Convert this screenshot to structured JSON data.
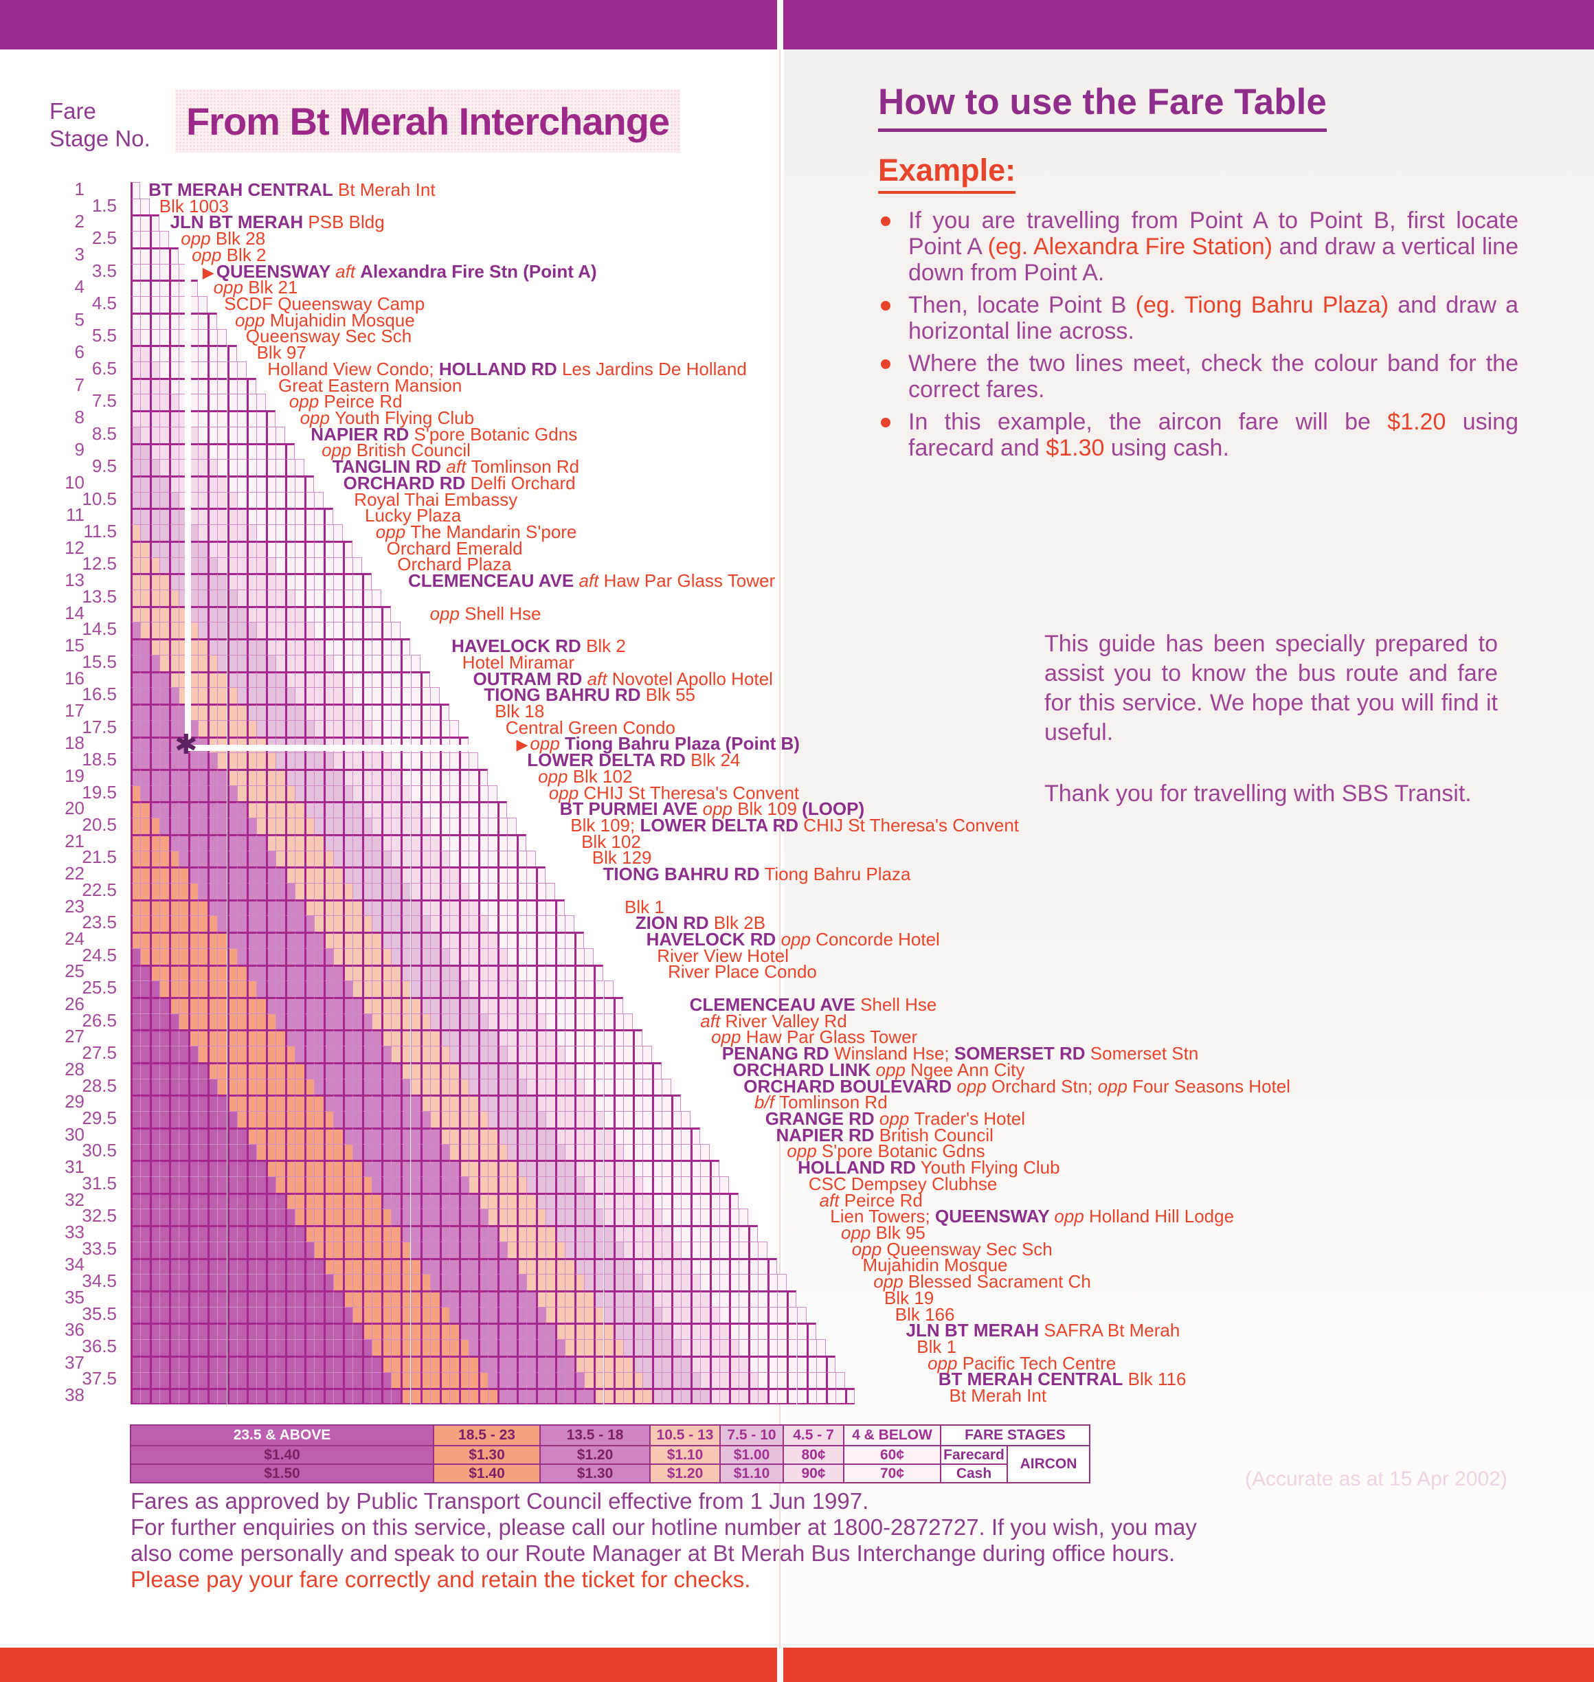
{
  "header": {
    "fare_stage_line1": "Fare",
    "fare_stage_line2": "Stage No.",
    "title": "From Bt Merah Interchange"
  },
  "howto": {
    "title": "How to use the Fare Table",
    "example_label": "Example:",
    "bullets": [
      {
        "parts": [
          {
            "t": "If you are travelling from Point A to Point B, first locate Point A "
          },
          {
            "t": "(eg. Alexandra Fire Station)",
            "red": true
          },
          {
            "t": " and draw a vertical line down from Point A."
          }
        ]
      },
      {
        "parts": [
          {
            "t": "Then, locate Point B "
          },
          {
            "t": "(eg. Tiong Bahru Plaza)",
            "red": true
          },
          {
            "t": " and draw a horizontal line across."
          }
        ]
      },
      {
        "parts": [
          {
            "t": "Where the two lines meet, check the colour band for the correct fares."
          }
        ]
      },
      {
        "parts": [
          {
            "t": "In this example, the aircon fare will be "
          },
          {
            "t": "$1.20",
            "red": true
          },
          {
            "t": " using farecard and "
          },
          {
            "t": "$1.30",
            "red": true
          },
          {
            "t": " using cash."
          }
        ]
      }
    ]
  },
  "guide": {
    "para": "This guide has been specially prepared to assist you to know the bus route and fare for this service. We hope that you will find it useful.",
    "thanks": "Thank you for travelling with SBS Transit."
  },
  "example_overlay": {
    "marker_glyph": "✱"
  },
  "fare_table": {
    "bands": [
      {
        "range": "23.5 & ABOVE",
        "farecard": "$1.40",
        "cash": "$1.50",
        "color": "#bd5fae",
        "legend_text": "white"
      },
      {
        "range": "18.5 - 23",
        "farecard": "$1.30",
        "cash": "$1.40",
        "color": "#f5a283",
        "legend_text": "dark"
      },
      {
        "range": "13.5 - 18",
        "farecard": "$1.20",
        "cash": "$1.30",
        "color": "#cf85c4",
        "legend_text": "dark"
      },
      {
        "range": "10.5 - 13",
        "farecard": "$1.10",
        "cash": "$1.20",
        "color": "#f8c8b4",
        "legend_text": "light"
      },
      {
        "range": "7.5 - 10",
        "farecard": "$1.00",
        "cash": "$1.10",
        "color": "#e5c0dc",
        "legend_text": "light"
      },
      {
        "range": "4.5 - 7",
        "farecard": "80¢",
        "cash": "90¢",
        "color": "#f4dcea",
        "legend_text": "light"
      },
      {
        "range": "4 & BELOW",
        "farecard": "60¢",
        "cash": "70¢",
        "color": "#fcf3f8",
        "legend_text": "light"
      }
    ],
    "legend_headers": {
      "fare_stages": "FARE STAGES",
      "farecard": "Farecard",
      "cash": "Cash",
      "aircon": "AIRCON"
    },
    "stages": [
      {
        "stage": "1",
        "parts": [
          {
            "t": "BT MERAH CENTRAL",
            "s": "road"
          },
          {
            "t": " Bt Merah Int",
            "s": "red"
          }
        ]
      },
      {
        "stage": "1.5",
        "parts": [
          {
            "t": "Blk 1003",
            "s": "red"
          }
        ]
      },
      {
        "stage": "2",
        "parts": [
          {
            "t": "JLN BT MERAH",
            "s": "road"
          },
          {
            "t": " PSB Bldg",
            "s": "red"
          }
        ]
      },
      {
        "stage": "2.5",
        "parts": [
          {
            "t": "opp ",
            "s": "it"
          },
          {
            "t": "Blk 28",
            "s": "red"
          }
        ]
      },
      {
        "stage": "3",
        "parts": [
          {
            "t": "opp ",
            "s": "it"
          },
          {
            "t": "Blk 2",
            "s": "red"
          }
        ]
      },
      {
        "stage": "3.5",
        "parts": [
          {
            "t": "▶",
            "s": "mark"
          },
          {
            "t": "QUEENSWAY ",
            "s": "road"
          },
          {
            "t": "aft ",
            "s": "it"
          },
          {
            "t": "Alexandra Fire Stn (Point A)",
            "s": "road"
          }
        ]
      },
      {
        "stage": "4",
        "parts": [
          {
            "t": "opp ",
            "s": "it"
          },
          {
            "t": "Blk 21",
            "s": "red"
          }
        ]
      },
      {
        "stage": "4.5",
        "parts": [
          {
            "t": "SCDF Queensway Camp",
            "s": "red"
          }
        ]
      },
      {
        "stage": "5",
        "parts": [
          {
            "t": "opp ",
            "s": "it"
          },
          {
            "t": "Mujahidin Mosque",
            "s": "red"
          }
        ]
      },
      {
        "stage": "5.5",
        "parts": [
          {
            "t": "Queensway Sec Sch",
            "s": "red"
          }
        ]
      },
      {
        "stage": "6",
        "parts": [
          {
            "t": "Blk 97",
            "s": "red"
          }
        ]
      },
      {
        "stage": "6.5",
        "parts": [
          {
            "t": "Holland View Condo;  ",
            "s": "red"
          },
          {
            "t": "HOLLAND RD",
            "s": "road"
          },
          {
            "t": " Les Jardins De Holland",
            "s": "red"
          }
        ]
      },
      {
        "stage": "7",
        "parts": [
          {
            "t": "Great Eastern Mansion",
            "s": "red"
          }
        ]
      },
      {
        "stage": "7.5",
        "parts": [
          {
            "t": "opp ",
            "s": "it"
          },
          {
            "t": "Peirce Rd",
            "s": "red"
          }
        ]
      },
      {
        "stage": "8",
        "parts": [
          {
            "t": "opp ",
            "s": "it"
          },
          {
            "t": "Youth Flying Club",
            "s": "red"
          }
        ]
      },
      {
        "stage": "8.5",
        "parts": [
          {
            "t": "NAPIER RD",
            "s": "road"
          },
          {
            "t": " S'pore Botanic Gdns",
            "s": "red"
          }
        ]
      },
      {
        "stage": "9",
        "parts": [
          {
            "t": "opp ",
            "s": "it"
          },
          {
            "t": "British Council",
            "s": "red"
          }
        ]
      },
      {
        "stage": "9.5",
        "parts": [
          {
            "t": "TANGLIN RD ",
            "s": "road"
          },
          {
            "t": "aft ",
            "s": "it"
          },
          {
            "t": "Tomlinson Rd",
            "s": "red"
          }
        ]
      },
      {
        "stage": "10",
        "parts": [
          {
            "t": "ORCHARD RD",
            "s": "road"
          },
          {
            "t": " Delfi Orchard",
            "s": "red"
          }
        ]
      },
      {
        "stage": "10.5",
        "parts": [
          {
            "t": "Royal Thai Embassy",
            "s": "red"
          }
        ]
      },
      {
        "stage": "11",
        "parts": [
          {
            "t": "Lucky Plaza",
            "s": "red"
          }
        ]
      },
      {
        "stage": "11.5",
        "parts": [
          {
            "t": "opp ",
            "s": "it"
          },
          {
            "t": "The Mandarin S'pore",
            "s": "red"
          }
        ]
      },
      {
        "stage": "12",
        "parts": [
          {
            "t": "Orchard Emerald",
            "s": "red"
          }
        ]
      },
      {
        "stage": "12.5",
        "parts": [
          {
            "t": "Orchard Plaza",
            "s": "red"
          }
        ]
      },
      {
        "stage": "13",
        "parts": [
          {
            "t": "CLEMENCEAU AVE ",
            "s": "road"
          },
          {
            "t": "aft ",
            "s": "it"
          },
          {
            "t": "Haw Par Glass Tower",
            "s": "red"
          }
        ]
      },
      {
        "stage": "13.5",
        "parts": []
      },
      {
        "stage": "14",
        "parts": [
          {
            "t": "opp ",
            "s": "it"
          },
          {
            "t": "Shell Hse",
            "s": "red"
          }
        ]
      },
      {
        "stage": "14.5",
        "parts": []
      },
      {
        "stage": "15",
        "parts": [
          {
            "t": "HAVELOCK RD",
            "s": "road"
          },
          {
            "t": " Blk 2",
            "s": "red"
          }
        ]
      },
      {
        "stage": "15.5",
        "parts": [
          {
            "t": "Hotel Miramar",
            "s": "red"
          }
        ]
      },
      {
        "stage": "16",
        "parts": [
          {
            "t": "OUTRAM RD ",
            "s": "road"
          },
          {
            "t": "aft ",
            "s": "it"
          },
          {
            "t": "Novotel Apollo Hotel",
            "s": "red"
          }
        ]
      },
      {
        "stage": "16.5",
        "parts": [
          {
            "t": "TIONG BAHRU RD",
            "s": "road"
          },
          {
            "t": " Blk 55",
            "s": "red"
          }
        ]
      },
      {
        "stage": "17",
        "parts": [
          {
            "t": "Blk 18",
            "s": "red"
          }
        ]
      },
      {
        "stage": "17.5",
        "parts": [
          {
            "t": "Central Green Condo",
            "s": "red"
          }
        ]
      },
      {
        "stage": "18",
        "parts": [
          {
            "t": "▶",
            "s": "mark"
          },
          {
            "t": "opp ",
            "s": "it"
          },
          {
            "t": "Tiong Bahru Plaza (Point B)",
            "s": "road"
          }
        ]
      },
      {
        "stage": "18.5",
        "parts": [
          {
            "t": "LOWER DELTA RD",
            "s": "road"
          },
          {
            "t": " Blk 24",
            "s": "red"
          }
        ]
      },
      {
        "stage": "19",
        "parts": [
          {
            "t": "opp ",
            "s": "it"
          },
          {
            "t": "Blk 102",
            "s": "red"
          }
        ]
      },
      {
        "stage": "19.5",
        "parts": [
          {
            "t": "opp ",
            "s": "it"
          },
          {
            "t": "CHIJ St Theresa's Convent",
            "s": "red"
          }
        ]
      },
      {
        "stage": "20",
        "parts": [
          {
            "t": "BT PURMEI AVE ",
            "s": "road"
          },
          {
            "t": "opp ",
            "s": "it"
          },
          {
            "t": "Blk 109  ",
            "s": "red"
          },
          {
            "t": "(LOOP)",
            "s": "road"
          }
        ]
      },
      {
        "stage": "20.5",
        "parts": [
          {
            "t": "Blk 109;  ",
            "s": "red"
          },
          {
            "t": "LOWER DELTA RD",
            "s": "road"
          },
          {
            "t": " CHIJ St Theresa's Convent",
            "s": "red"
          }
        ]
      },
      {
        "stage": "21",
        "parts": [
          {
            "t": "Blk 102",
            "s": "red"
          }
        ]
      },
      {
        "stage": "21.5",
        "parts": [
          {
            "t": "Blk 129",
            "s": "red"
          }
        ]
      },
      {
        "stage": "22",
        "parts": [
          {
            "t": "TIONG BAHRU RD",
            "s": "road"
          },
          {
            "t": " Tiong Bahru Plaza",
            "s": "red"
          }
        ]
      },
      {
        "stage": "22.5",
        "parts": []
      },
      {
        "stage": "23",
        "parts": [
          {
            "t": "Blk 1",
            "s": "red"
          }
        ]
      },
      {
        "stage": "23.5",
        "parts": [
          {
            "t": "ZION RD",
            "s": "road"
          },
          {
            "t": " Blk 2B",
            "s": "red"
          }
        ]
      },
      {
        "stage": "24",
        "parts": [
          {
            "t": "HAVELOCK RD ",
            "s": "road"
          },
          {
            "t": "opp ",
            "s": "it"
          },
          {
            "t": "Concorde Hotel",
            "s": "red"
          }
        ]
      },
      {
        "stage": "24.5",
        "parts": [
          {
            "t": "River View Hotel",
            "s": "red"
          }
        ]
      },
      {
        "stage": "25",
        "parts": [
          {
            "t": "River Place Condo",
            "s": "red"
          }
        ]
      },
      {
        "stage": "25.5",
        "parts": []
      },
      {
        "stage": "26",
        "parts": [
          {
            "t": "CLEMENCEAU AVE",
            "s": "road"
          },
          {
            "t": " Shell Hse",
            "s": "red"
          }
        ]
      },
      {
        "stage": "26.5",
        "parts": [
          {
            "t": "aft ",
            "s": "it"
          },
          {
            "t": "River Valley Rd",
            "s": "red"
          }
        ]
      },
      {
        "stage": "27",
        "parts": [
          {
            "t": "opp ",
            "s": "it"
          },
          {
            "t": "Haw Par Glass Tower",
            "s": "red"
          }
        ]
      },
      {
        "stage": "27.5",
        "parts": [
          {
            "t": "PENANG RD",
            "s": "road"
          },
          {
            "t": " Winsland Hse;  ",
            "s": "red"
          },
          {
            "t": "SOMERSET RD",
            "s": "road"
          },
          {
            "t": " Somerset Stn",
            "s": "red"
          }
        ]
      },
      {
        "stage": "28",
        "parts": [
          {
            "t": "ORCHARD LINK ",
            "s": "road"
          },
          {
            "t": "opp ",
            "s": "it"
          },
          {
            "t": "Ngee Ann City",
            "s": "red"
          }
        ]
      },
      {
        "stage": "28.5",
        "parts": [
          {
            "t": "ORCHARD BOULEVARD ",
            "s": "road"
          },
          {
            "t": "opp ",
            "s": "it"
          },
          {
            "t": "Orchard Stn;  ",
            "s": "red"
          },
          {
            "t": "opp ",
            "s": "it"
          },
          {
            "t": "Four Seasons Hotel",
            "s": "red"
          }
        ]
      },
      {
        "stage": "29",
        "parts": [
          {
            "t": "b/f ",
            "s": "it"
          },
          {
            "t": "Tomlinson Rd",
            "s": "red"
          }
        ]
      },
      {
        "stage": "29.5",
        "parts": [
          {
            "t": "GRANGE RD ",
            "s": "road"
          },
          {
            "t": "opp ",
            "s": "it"
          },
          {
            "t": "Trader's Hotel",
            "s": "red"
          }
        ]
      },
      {
        "stage": "30",
        "parts": [
          {
            "t": "NAPIER RD",
            "s": "road"
          },
          {
            "t": " British Council",
            "s": "red"
          }
        ]
      },
      {
        "stage": "30.5",
        "parts": [
          {
            "t": "opp ",
            "s": "it"
          },
          {
            "t": "S'pore Botanic Gdns",
            "s": "red"
          }
        ]
      },
      {
        "stage": "31",
        "parts": [
          {
            "t": "HOLLAND RD",
            "s": "road"
          },
          {
            "t": " Youth Flying Club",
            "s": "red"
          }
        ]
      },
      {
        "stage": "31.5",
        "parts": [
          {
            "t": "CSC Dempsey Clubhse",
            "s": "red"
          }
        ]
      },
      {
        "stage": "32",
        "parts": [
          {
            "t": "aft ",
            "s": "it"
          },
          {
            "t": "Peirce Rd",
            "s": "red"
          }
        ]
      },
      {
        "stage": "32.5",
        "parts": [
          {
            "t": "Lien Towers;  ",
            "s": "red"
          },
          {
            "t": "QUEENSWAY ",
            "s": "road"
          },
          {
            "t": "opp ",
            "s": "it"
          },
          {
            "t": "Holland Hill Lodge",
            "s": "red"
          }
        ]
      },
      {
        "stage": "33",
        "parts": [
          {
            "t": "opp ",
            "s": "it"
          },
          {
            "t": "Blk 95",
            "s": "red"
          }
        ]
      },
      {
        "stage": "33.5",
        "parts": [
          {
            "t": "opp ",
            "s": "it"
          },
          {
            "t": "Queensway Sec Sch",
            "s": "red"
          }
        ]
      },
      {
        "stage": "34",
        "parts": [
          {
            "t": "Mujahidin Mosque",
            "s": "red"
          }
        ]
      },
      {
        "stage": "34.5",
        "parts": [
          {
            "t": "opp ",
            "s": "it"
          },
          {
            "t": "Blessed Sacrament Ch",
            "s": "red"
          }
        ]
      },
      {
        "stage": "35",
        "parts": [
          {
            "t": "Blk 19",
            "s": "red"
          }
        ]
      },
      {
        "stage": "35.5",
        "parts": [
          {
            "t": "Blk 166",
            "s": "red"
          }
        ]
      },
      {
        "stage": "36",
        "parts": [
          {
            "t": "JLN BT MERAH",
            "s": "road"
          },
          {
            "t": " SAFRA Bt Merah",
            "s": "red"
          }
        ]
      },
      {
        "stage": "36.5",
        "parts": [
          {
            "t": "Blk 1",
            "s": "red"
          }
        ]
      },
      {
        "stage": "37",
        "parts": [
          {
            "t": "opp ",
            "s": "it"
          },
          {
            "t": "Pacific Tech Centre",
            "s": "red"
          }
        ]
      },
      {
        "stage": "37.5",
        "parts": [
          {
            "t": "BT MERAH CENTRAL",
            "s": "road"
          },
          {
            "t": " Blk 116",
            "s": "red"
          }
        ]
      },
      {
        "stage": "38",
        "parts": [
          {
            "t": "Bt Merah Int",
            "s": "red"
          }
        ]
      }
    ]
  },
  "accuracy_note": "(Accurate as at 15 Apr 2002)",
  "footer": {
    "line1": "Fares as approved by Public Transport Council effective from 1 Jun 1997.",
    "line2": "For further enquiries on this service, please call our hotline number at 1800-2872727.  If you wish, you may",
    "line3": "also come personally and speak to our Route Manager at Bt Merah Bus Interchange during office hours.",
    "line4": "Please pay your fare correctly and retain the ticket for checks."
  }
}
